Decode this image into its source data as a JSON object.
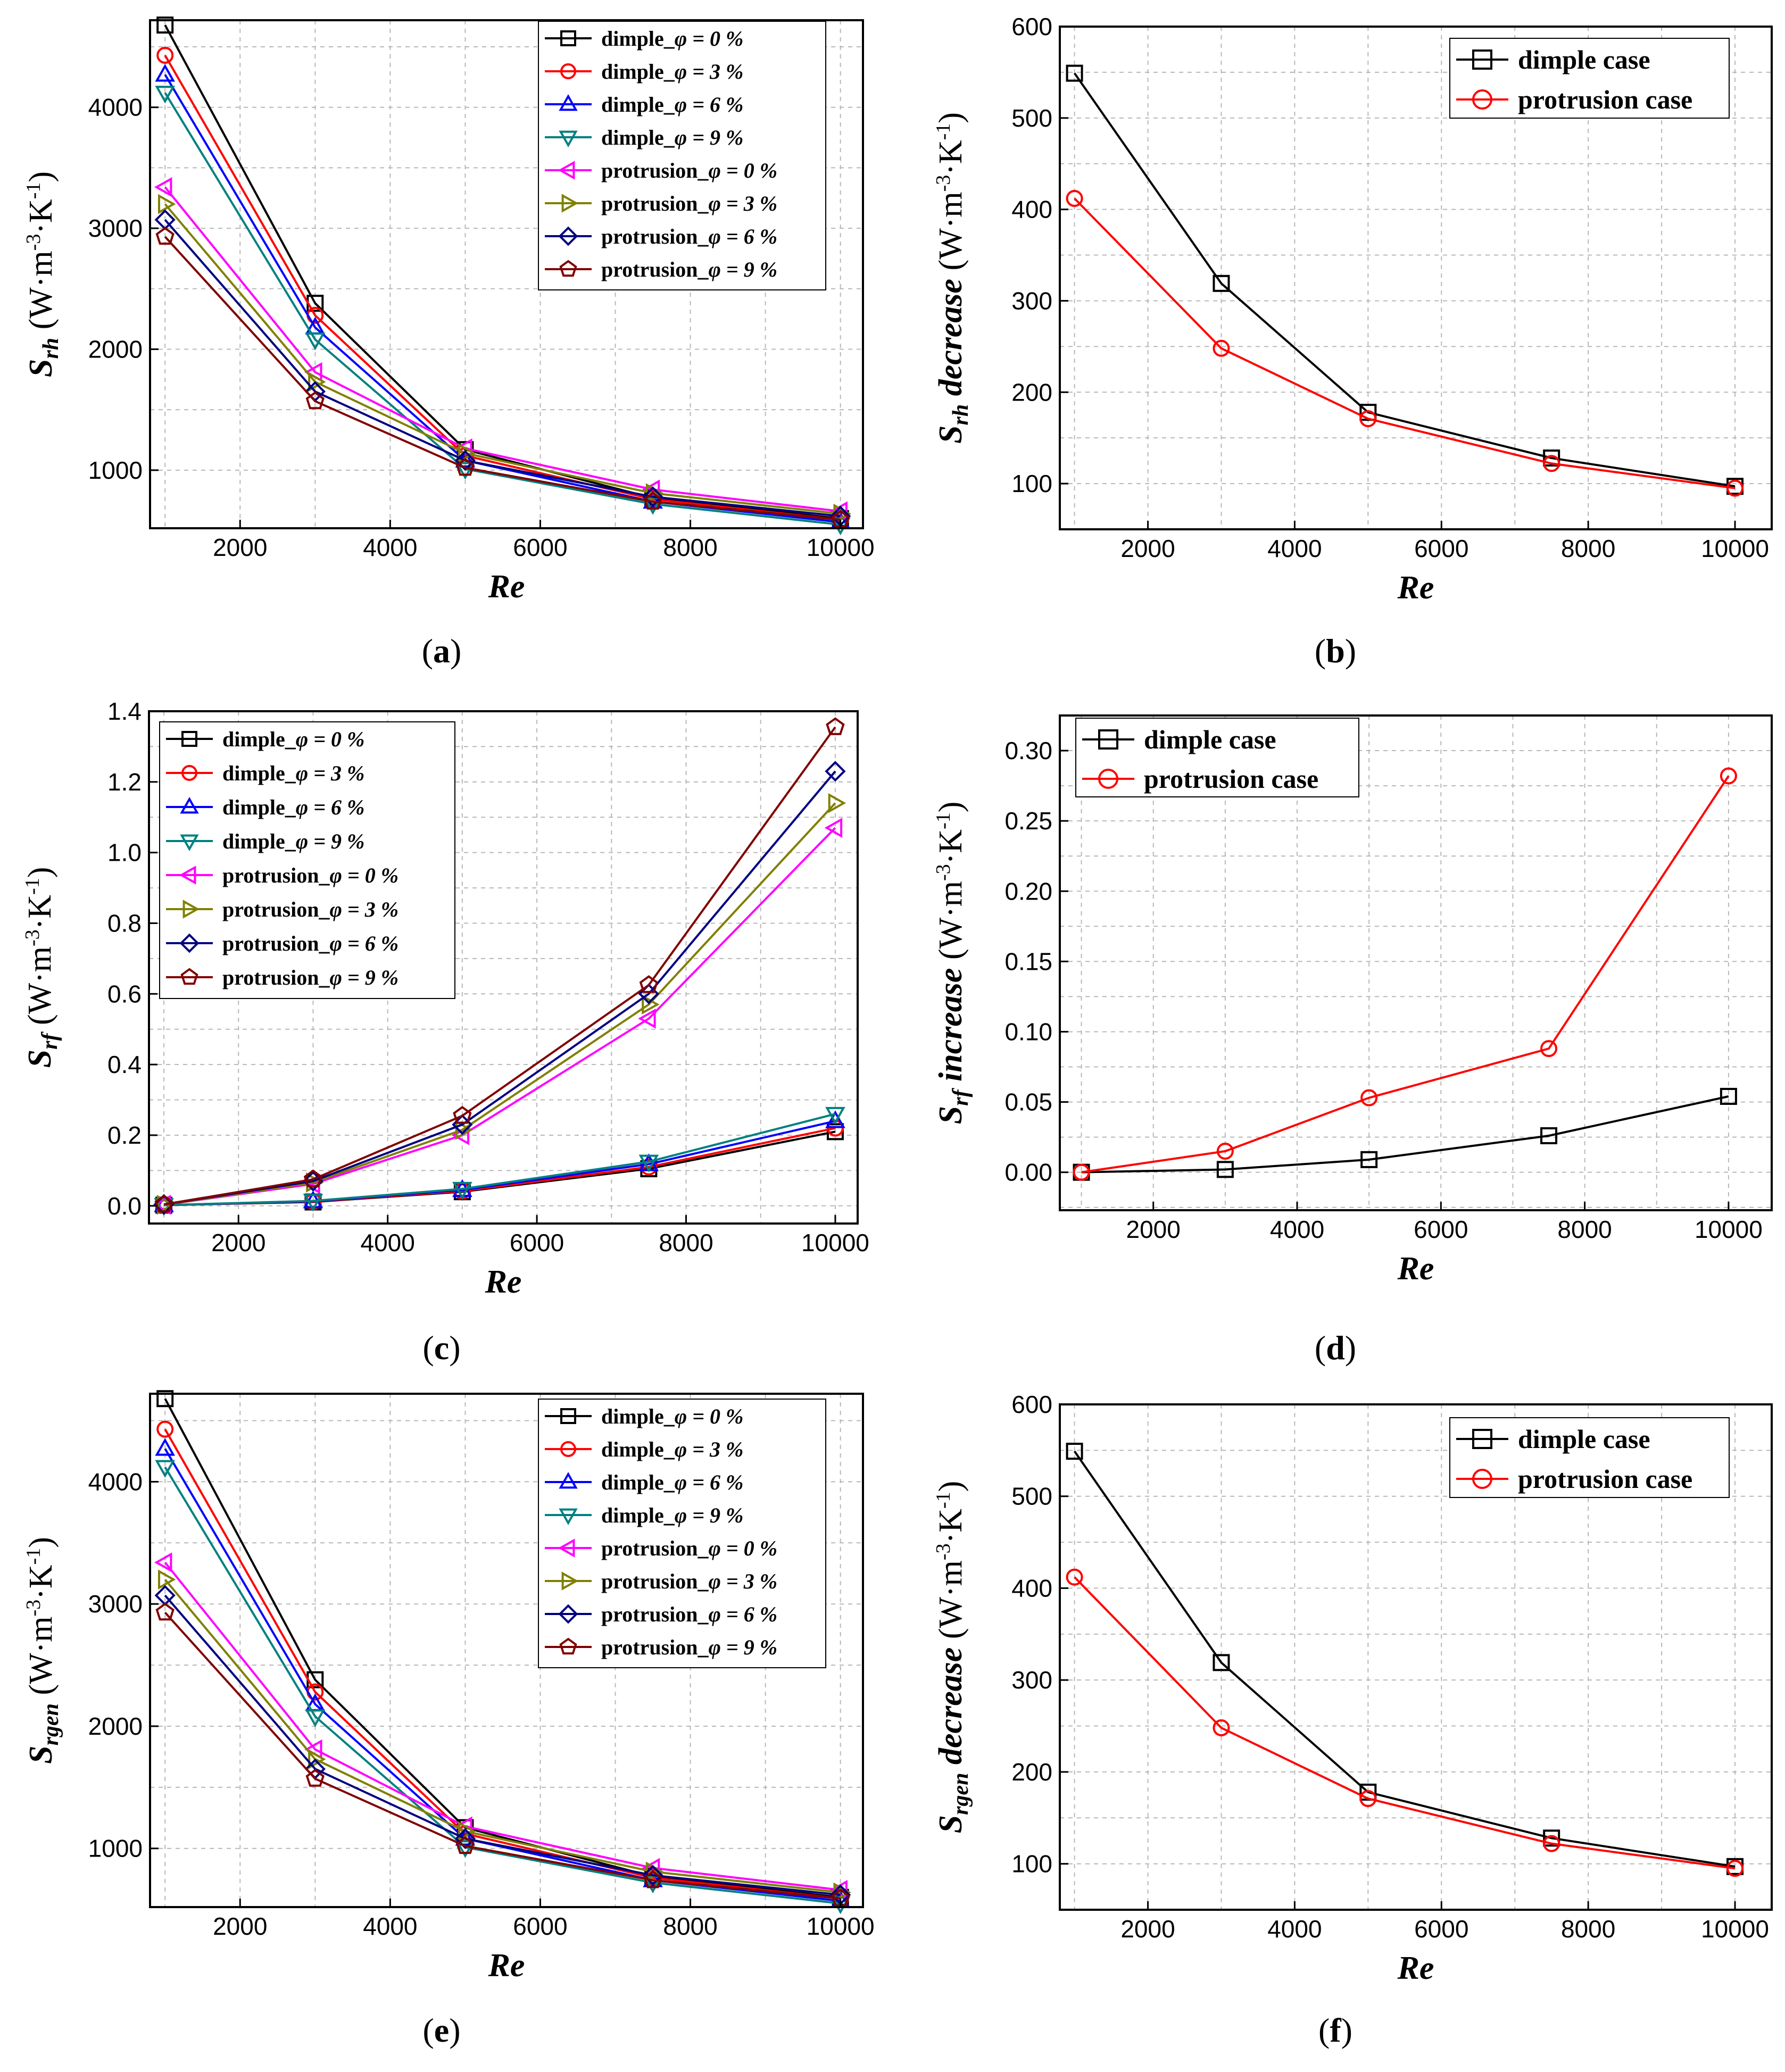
{
  "figure": {
    "panel_labels": [
      "(a)",
      "(b)",
      "(c)",
      "(d)",
      "(e)",
      "(f)"
    ]
  },
  "colors": {
    "d0": "#000000",
    "d3": "#ff0000",
    "d6": "#0000ff",
    "d9": "#008080",
    "p0": "#ff00ff",
    "p3": "#808000",
    "p6": "#000080",
    "p9": "#800000"
  },
  "chart_data": [
    {
      "id": "a",
      "type": "line",
      "title": "",
      "xlabel": "Re",
      "ylabel_main": "S",
      "ylabel_sub": "rh",
      "ylabel_unit": "(W·m-3·K-1)",
      "xlim": [
        800,
        10300
      ],
      "ylim": [
        520,
        4720
      ],
      "xticks": [
        2000,
        4000,
        6000,
        8000,
        10000
      ],
      "yticks": [
        1000,
        2000,
        3000,
        4000
      ],
      "legend_position": "top-right",
      "x": [
        1000,
        3000,
        5000,
        7500,
        10000
      ],
      "series": [
        {
          "name": "dimple_",
          "phi": "φ = 0 %",
          "color": "#000000",
          "marker": "square",
          "values": [
            4680,
            2380,
            1170,
            770,
            600
          ]
        },
        {
          "name": "dimple_",
          "phi": "φ = 3 %",
          "color": "#ff0000",
          "marker": "circle",
          "values": [
            4430,
            2280,
            1120,
            760,
            590
          ]
        },
        {
          "name": "dimple_",
          "phi": "φ = 6 %",
          "color": "#0000ff",
          "marker": "triangle-up",
          "values": [
            4270,
            2180,
            1080,
            740,
            570
          ]
        },
        {
          "name": "dimple_",
          "phi": "φ = 9 %",
          "color": "#008080",
          "marker": "triangle-down",
          "values": [
            4120,
            2080,
            1010,
            720,
            550
          ]
        },
        {
          "name": "protrusion_",
          "phi": "φ = 0 %",
          "color": "#ff00ff",
          "marker": "triangle-left",
          "values": [
            3340,
            1810,
            1180,
            840,
            660
          ]
        },
        {
          "name": "protrusion_",
          "phi": "φ = 3 %",
          "color": "#808000",
          "marker": "triangle-right",
          "values": [
            3200,
            1730,
            1140,
            810,
            640
          ]
        },
        {
          "name": "protrusion_",
          "phi": "φ = 6 %",
          "color": "#000080",
          "marker": "diamond",
          "values": [
            3070,
            1650,
            1080,
            780,
            620
          ]
        },
        {
          "name": "protrusion_",
          "phi": "φ = 9 %",
          "color": "#800000",
          "marker": "pentagon",
          "values": [
            2930,
            1570,
            1020,
            740,
            590
          ]
        }
      ]
    },
    {
      "id": "b",
      "type": "line",
      "title": "",
      "xlabel": "Re",
      "ylabel_main": "S",
      "ylabel_sub": "rh",
      "ylabel_tail": " decrease",
      "ylabel_unit": "(W·m-3·K-1)",
      "xlim": [
        800,
        10500
      ],
      "ylim": [
        50,
        600
      ],
      "xticks": [
        2000,
        4000,
        6000,
        8000,
        10000
      ],
      "yticks": [
        100,
        200,
        300,
        400,
        500,
        600
      ],
      "legend_position": "top-right",
      "x": [
        1000,
        3000,
        5000,
        7500,
        10000
      ],
      "series": [
        {
          "name": "dimple case",
          "color": "#000000",
          "marker": "square",
          "values": [
            549,
            319,
            178,
            128,
            97
          ]
        },
        {
          "name": "protrusion case",
          "color": "#ff0000",
          "marker": "circle",
          "values": [
            412,
            248,
            171,
            122,
            95
          ]
        }
      ]
    },
    {
      "id": "c",
      "type": "line",
      "title": "",
      "xlabel": "Re",
      "ylabel_main": "S",
      "ylabel_sub": "rf",
      "ylabel_unit": "(W·m-3·K-1)",
      "xlim": [
        800,
        10300
      ],
      "ylim": [
        -0.05,
        1.4
      ],
      "xticks": [
        2000,
        4000,
        6000,
        8000,
        10000
      ],
      "yticks": [
        0.0,
        0.2,
        0.4,
        0.6,
        0.8,
        1.0,
        1.2,
        1.4
      ],
      "ytick_labels": [
        "0.0",
        "0.2",
        "0.4",
        "0.6",
        "0.8",
        "1.0",
        "1.2",
        "1.4"
      ],
      "legend_position": "top-left",
      "x": [
        1000,
        3000,
        5000,
        7500,
        10000
      ],
      "series": [
        {
          "name": "dimple_",
          "phi": "φ = 0 %",
          "color": "#000000",
          "marker": "square",
          "values": [
            0.002,
            0.011,
            0.04,
            0.105,
            0.21
          ]
        },
        {
          "name": "dimple_",
          "phi": "φ = 3 %",
          "color": "#ff0000",
          "marker": "circle",
          "values": [
            0.002,
            0.012,
            0.042,
            0.11,
            0.22
          ]
        },
        {
          "name": "dimple_",
          "phi": "φ = 6 %",
          "color": "#0000ff",
          "marker": "triangle-up",
          "values": [
            0.002,
            0.013,
            0.045,
            0.118,
            0.24
          ]
        },
        {
          "name": "dimple_",
          "phi": "φ = 9 %",
          "color": "#008080",
          "marker": "triangle-down",
          "values": [
            0.002,
            0.014,
            0.048,
            0.125,
            0.26
          ]
        },
        {
          "name": "protrusion_",
          "phi": "φ = 0 %",
          "color": "#ff00ff",
          "marker": "triangle-left",
          "values": [
            0.003,
            0.062,
            0.2,
            0.53,
            1.07
          ]
        },
        {
          "name": "protrusion_",
          "phi": "φ = 3 %",
          "color": "#808000",
          "marker": "triangle-right",
          "values": [
            0.003,
            0.066,
            0.215,
            0.57,
            1.14
          ]
        },
        {
          "name": "protrusion_",
          "phi": "φ = 6 %",
          "color": "#000080",
          "marker": "diamond",
          "values": [
            0.004,
            0.07,
            0.23,
            0.6,
            1.23
          ]
        },
        {
          "name": "protrusion_",
          "phi": "φ = 9 %",
          "color": "#800000",
          "marker": "pentagon",
          "values": [
            0.004,
            0.075,
            0.255,
            0.625,
            1.355
          ]
        }
      ]
    },
    {
      "id": "d",
      "type": "line",
      "title": "",
      "xlabel": "Re",
      "ylabel_main": "S",
      "ylabel_sub": "rf",
      "ylabel_tail": " increase",
      "ylabel_unit": "(W·m-3·K-1)",
      "xlim": [
        700,
        10600
      ],
      "ylim": [
        -0.027,
        0.325
      ],
      "xticks": [
        2000,
        4000,
        6000,
        8000,
        10000
      ],
      "yticks": [
        0.0,
        0.05,
        0.1,
        0.15,
        0.2,
        0.25,
        0.3
      ],
      "ytick_labels": [
        "0.00",
        "0.05",
        "0.10",
        "0.15",
        "0.20",
        "0.25",
        "0.30"
      ],
      "legend_position": "top-left",
      "x": [
        1000,
        3000,
        5000,
        7500,
        10000
      ],
      "series": [
        {
          "name": "dimple case",
          "color": "#000000",
          "marker": "square",
          "values": [
            0.0,
            0.002,
            0.009,
            0.026,
            0.054
          ]
        },
        {
          "name": "protrusion case",
          "color": "#ff0000",
          "marker": "circle",
          "values": [
            0.0,
            0.015,
            0.053,
            0.088,
            0.282
          ]
        }
      ]
    },
    {
      "id": "e",
      "type": "line",
      "title": "",
      "xlabel": "Re",
      "ylabel_main": "S",
      "ylabel_sub": "rgen",
      "ylabel_unit": "(W·m-3·K-1)",
      "xlim": [
        800,
        10300
      ],
      "ylim": [
        520,
        4720
      ],
      "xticks": [
        2000,
        4000,
        6000,
        8000,
        10000
      ],
      "yticks": [
        1000,
        2000,
        3000,
        4000
      ],
      "legend_position": "top-right",
      "x": [
        1000,
        3000,
        5000,
        7500,
        10000
      ],
      "series": [
        {
          "name": "dimple_",
          "phi": "φ = 0 %",
          "color": "#000000",
          "marker": "square",
          "values": [
            4680,
            2380,
            1170,
            770,
            600
          ]
        },
        {
          "name": "dimple_",
          "phi": "φ = 3 %",
          "color": "#ff0000",
          "marker": "circle",
          "values": [
            4430,
            2280,
            1120,
            760,
            590
          ]
        },
        {
          "name": "dimple_",
          "phi": "φ = 6 %",
          "color": "#0000ff",
          "marker": "triangle-up",
          "values": [
            4270,
            2180,
            1080,
            740,
            570
          ]
        },
        {
          "name": "dimple_",
          "phi": "φ = 9 %",
          "color": "#008080",
          "marker": "triangle-down",
          "values": [
            4120,
            2080,
            1010,
            720,
            550
          ]
        },
        {
          "name": "protrusion_",
          "phi": "φ = 0 %",
          "color": "#ff00ff",
          "marker": "triangle-left",
          "values": [
            3340,
            1810,
            1180,
            840,
            660
          ]
        },
        {
          "name": "protrusion_",
          "phi": "φ = 3 %",
          "color": "#808000",
          "marker": "triangle-right",
          "values": [
            3200,
            1730,
            1140,
            810,
            640
          ]
        },
        {
          "name": "protrusion_",
          "phi": "φ = 6 %",
          "color": "#000080",
          "marker": "diamond",
          "values": [
            3070,
            1650,
            1080,
            780,
            620
          ]
        },
        {
          "name": "protrusion_",
          "phi": "φ = 9 %",
          "color": "#800000",
          "marker": "pentagon",
          "values": [
            2930,
            1570,
            1020,
            740,
            590
          ]
        }
      ]
    },
    {
      "id": "f",
      "type": "line",
      "title": "",
      "xlabel": "Re",
      "ylabel_main": "S",
      "ylabel_sub": "rgen",
      "ylabel_tail": " decrease",
      "ylabel_unit": "(W·m-3·K-1)",
      "xlim": [
        800,
        10500
      ],
      "ylim": [
        50,
        600
      ],
      "xticks": [
        2000,
        4000,
        6000,
        8000,
        10000
      ],
      "yticks": [
        100,
        200,
        300,
        400,
        500,
        600
      ],
      "legend_position": "top-right",
      "x": [
        1000,
        3000,
        5000,
        7500,
        10000
      ],
      "series": [
        {
          "name": "dimple case",
          "color": "#000000",
          "marker": "square",
          "values": [
            549,
            319,
            178,
            128,
            97
          ]
        },
        {
          "name": "protrusion case",
          "color": "#ff0000",
          "marker": "circle",
          "values": [
            412,
            248,
            171,
            122,
            95
          ]
        }
      ]
    }
  ]
}
